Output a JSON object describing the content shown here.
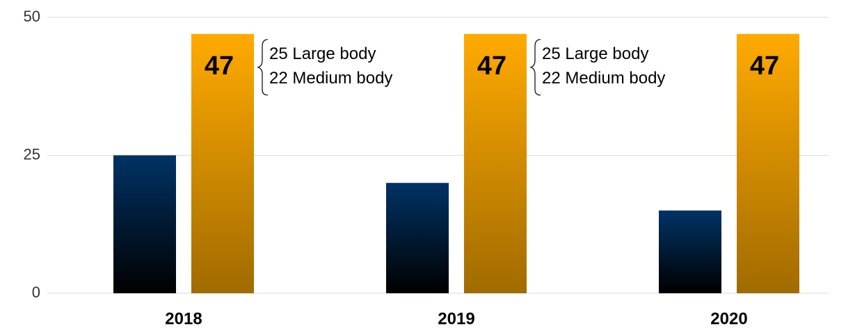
{
  "chart_data": {
    "type": "bar",
    "categories": [
      "2018",
      "2019",
      "2020"
    ],
    "series": [
      {
        "color": "#003366",
        "values": [
          25,
          20,
          15
        ]
      },
      {
        "color": "#ffaa00",
        "values": [
          47,
          47,
          47
        ]
      }
    ],
    "annotations": [
      [
        "25 Large body",
        "22 Medium body"
      ],
      [
        "25 Large body",
        "22 Medium body"
      ],
      null
    ],
    "ylim": [
      0,
      50
    ],
    "yticks": [
      0,
      25,
      50
    ],
    "grid": true
  }
}
